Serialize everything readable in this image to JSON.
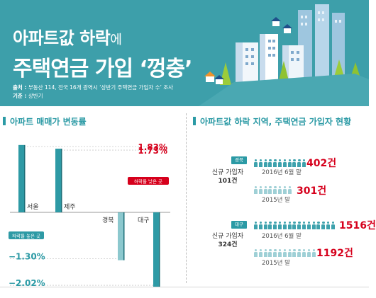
{
  "header": {
    "title_line1_a": "아파트값 하락",
    "title_line1_b": "에",
    "title_line2": "주택연금 가입 ‘껑충’",
    "source_label": "출처 :",
    "source_text": "부동산 114, 전국 16개 광역시 ‘상반기 주택연금 가입자 수’ 조사",
    "basis_label": "기준 :",
    "basis_text": "상반기",
    "colors": {
      "background": "#3d9faa",
      "accent": "#2b9aa5",
      "highlight": "#d6001c"
    }
  },
  "left_section": {
    "title": "아파트 매매가 변동률"
  },
  "right_section": {
    "title": "아파트값 하락 지역, 주택연금 가입자 현황"
  },
  "chart_data": {
    "type": "bar",
    "categories": [
      "서울",
      "제주",
      "경북",
      "대구"
    ],
    "values": [
      1.83,
      1.73,
      -1.3,
      -2.02
    ],
    "value_labels": [
      "1.83%",
      "1.73%",
      "−1.30%",
      "−2.02%"
    ],
    "title": "아파트 매매가 변동률",
    "xlabel": "",
    "ylabel": "",
    "ylim": [
      -2.1,
      1.9
    ],
    "grid": false,
    "legend_positive": "하락률 낮은 곳",
    "legend_negative": "하락률 높은 곳"
  },
  "regions": [
    {
      "name": "경북",
      "new_label": "신규 가입자",
      "new_count": "101건",
      "rows": [
        {
          "period": "2016년 6월 말",
          "count_text": "402건",
          "icons": 11,
          "shade": "dark"
        },
        {
          "period": "2015년 말",
          "count_text": "301건",
          "icons": 8,
          "shade": "light"
        }
      ]
    },
    {
      "name": "대구",
      "new_label": "신규 가입자",
      "new_count": "324건",
      "rows": [
        {
          "period": "2016년 6월 말",
          "count_text": "1516건",
          "icons": 17,
          "shade": "dark"
        },
        {
          "period": "2015년 말",
          "count_text": "1192건",
          "icons": 13,
          "shade": "light"
        }
      ]
    }
  ]
}
